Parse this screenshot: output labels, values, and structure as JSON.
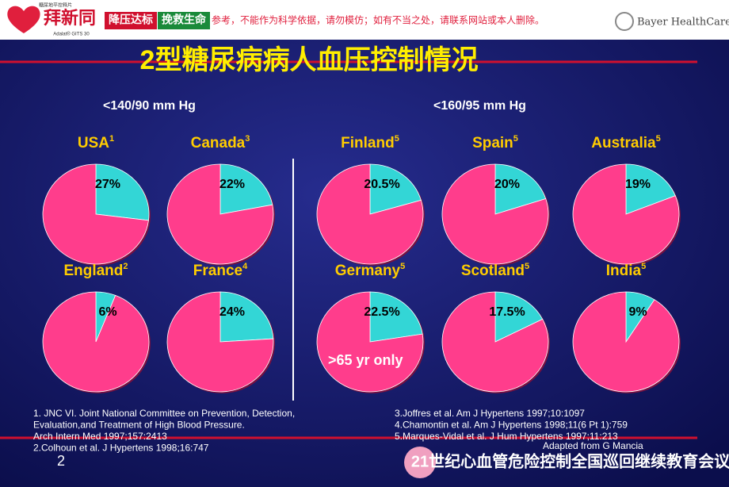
{
  "header": {
    "brand_small": "糖尿地平控释片",
    "brand": "拜新同",
    "brand_sub": "Adalat® GITS 30",
    "slogan_1": "降压达标",
    "slogan_2": "挽救生命",
    "disclaimer": "参考，不能作为科学依据，请勿模仿；如有不当之处，请联系网站或本人删除。",
    "company": "Bayer HealthCare"
  },
  "title": "2型糖尿病病人血压控制情况",
  "group_labels": [
    "<140/90 mm Hg",
    "<160/95 mm Hg"
  ],
  "chart_data": [
    {
      "type": "pie",
      "title": "USA",
      "superscript": "1",
      "values": [
        27,
        73
      ],
      "value_labels": [
        "27%",
        null
      ],
      "colors": [
        "#33d6d6",
        "#ff3d8c"
      ]
    },
    {
      "type": "pie",
      "title": "Canada",
      "superscript": "3",
      "values": [
        22,
        78
      ],
      "value_labels": [
        "22%",
        null
      ],
      "colors": [
        "#33d6d6",
        "#ff3d8c"
      ]
    },
    {
      "type": "pie",
      "title": "Finland",
      "superscript": "5",
      "values": [
        20.5,
        79.5
      ],
      "value_labels": [
        "20.5%",
        null
      ],
      "colors": [
        "#33d6d6",
        "#ff3d8c"
      ]
    },
    {
      "type": "pie",
      "title": "Spain",
      "superscript": "5",
      "values": [
        20,
        80
      ],
      "value_labels": [
        "20%",
        null
      ],
      "colors": [
        "#33d6d6",
        "#ff3d8c"
      ]
    },
    {
      "type": "pie",
      "title": "Australia",
      "superscript": "5",
      "values": [
        19,
        81
      ],
      "value_labels": [
        "19%",
        null
      ],
      "colors": [
        "#33d6d6",
        "#ff3d8c"
      ]
    },
    {
      "type": "pie",
      "title": "England",
      "superscript": "2",
      "values": [
        6,
        94
      ],
      "value_labels": [
        "6%",
        null
      ],
      "colors": [
        "#33d6d6",
        "#ff3d8c"
      ]
    },
    {
      "type": "pie",
      "title": "France",
      "superscript": "4",
      "values": [
        24,
        76
      ],
      "value_labels": [
        "24%",
        null
      ],
      "colors": [
        "#33d6d6",
        "#ff3d8c"
      ]
    },
    {
      "type": "pie",
      "title": "Germany",
      "superscript": "5",
      "values": [
        22.5,
        77.5
      ],
      "value_labels": [
        "22.5%",
        null
      ],
      "colors": [
        "#33d6d6",
        "#ff3d8c"
      ],
      "annotation": ">65 yr only"
    },
    {
      "type": "pie",
      "title": "Scotland",
      "superscript": "5",
      "values": [
        17.5,
        82.5
      ],
      "value_labels": [
        "17.5%",
        null
      ],
      "colors": [
        "#33d6d6",
        "#ff3d8c"
      ]
    },
    {
      "type": "pie",
      "title": "India",
      "superscript": "5",
      "values": [
        9,
        91
      ],
      "value_labels": [
        "9%",
        null
      ],
      "colors": [
        "#33d6d6",
        "#ff3d8c"
      ]
    }
  ],
  "references_left": [
    "1. JNC VI. Joint National Committee on Prevention, Detection,",
    "Evaluation,and Treatment of High Blood Pressure.",
    "Arch Intern Med 1997;157:2413",
    "2.Colhoun et al.  J Hypertens 1998;16:747"
  ],
  "references_right": [
    "3.Joffres et al.  Am J Hypertens 1997;10:1097",
    "4.Chamontin et al.  Am J Hypertens 1998;11(6 Pt 1):759",
    "5.Marques-Vidal et al.  J Hum Hypertens 1997;11:213"
  ],
  "credit": "Adapted from G Mancia",
  "page_number": "2",
  "footer": "21世纪心血管危险控制全国巡回继续教育会议"
}
